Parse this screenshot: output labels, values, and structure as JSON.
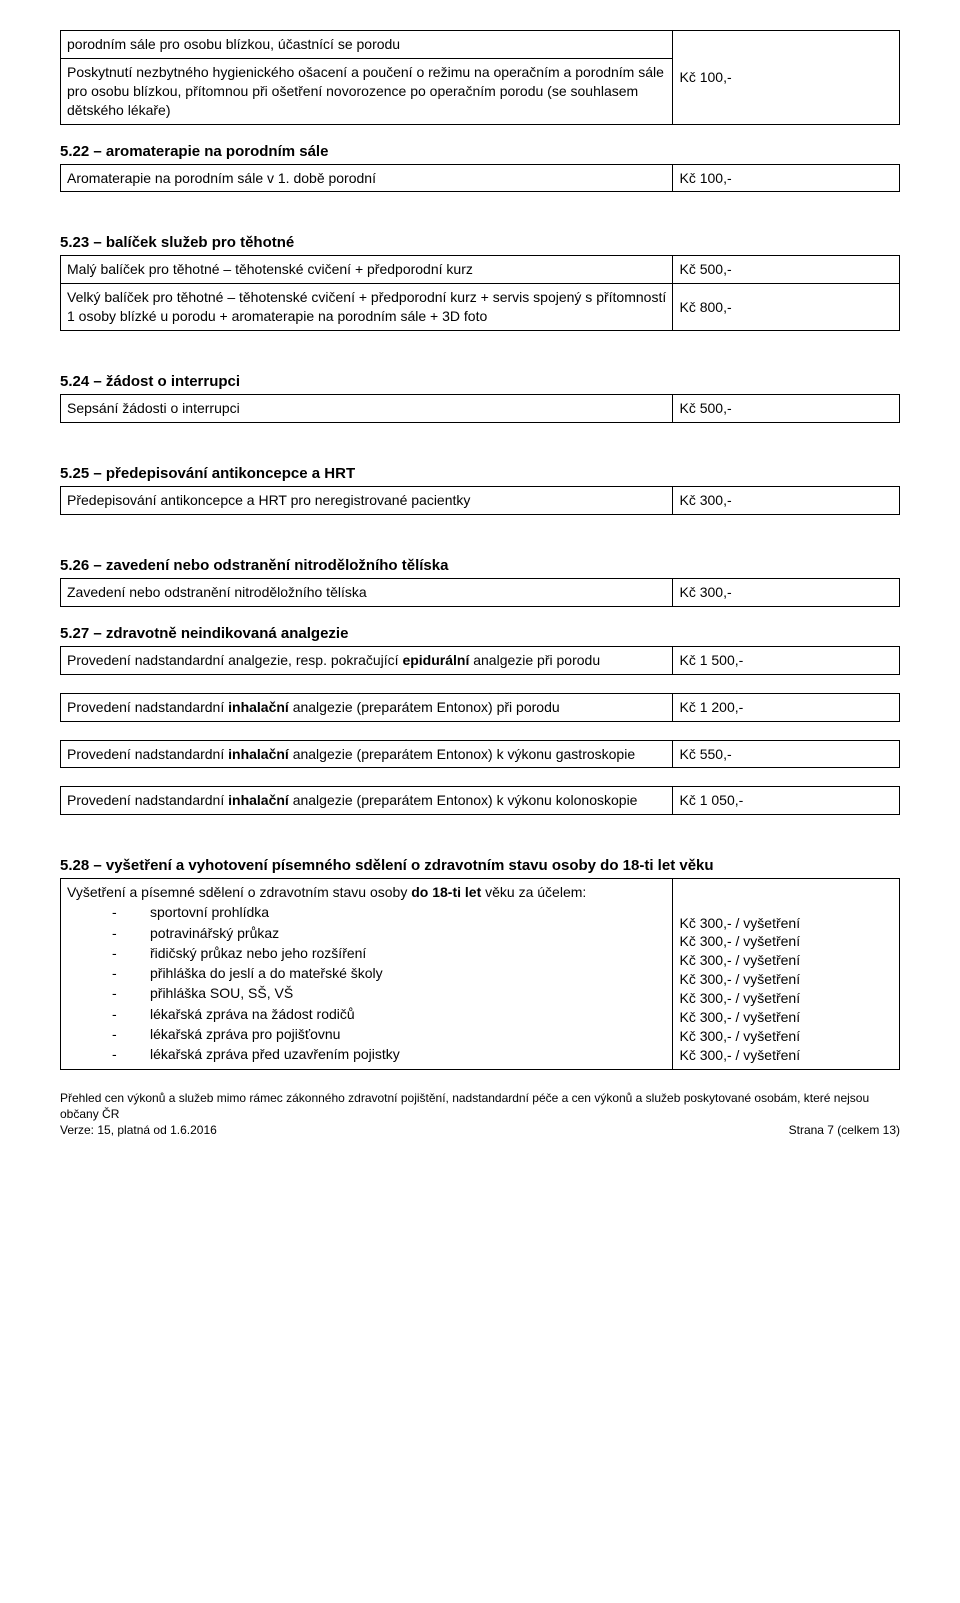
{
  "colors": {
    "text": "#000000",
    "background": "#ffffff",
    "border": "#000000"
  },
  "typography": {
    "body_font": "Verdana, Arial, sans-serif",
    "body_size_pt": 10.5,
    "heading_weight": "bold"
  },
  "layout": {
    "price_column_width_pct": 27
  },
  "tables": {
    "t_intro": {
      "rows": [
        {
          "desc": "porodním sále pro osobu blízkou, účastnící se porodu",
          "price": ""
        },
        {
          "desc": "Poskytnutí nezbytného hygienického ošacení a poučení o režimu na operačním a porodním sále pro osobu blízkou, přítomnou při ošetření novorozence po operačním porodu (se souhlasem dětského lékaře)",
          "price": "Kč 100,-"
        }
      ]
    },
    "s522": {
      "heading": "5.22 – aromaterapie na porodním sále",
      "rows": [
        {
          "desc": "Aromaterapie na porodním sále v 1. době porodní",
          "price": "Kč 100,-"
        }
      ]
    },
    "s523": {
      "heading": "5.23 – balíček služeb pro těhotné",
      "rows": [
        {
          "desc": "Malý balíček pro těhotné – těhotenské cvičení + předporodní kurz",
          "price": "Kč 500,-"
        },
        {
          "desc": "Velký balíček pro těhotné – těhotenské cvičení + předporodní kurz + servis spojený s přítomností 1 osoby blízké u porodu + aromaterapie na porodním sále + 3D foto",
          "price": "Kč 800,-"
        }
      ]
    },
    "s524": {
      "heading": "5.24 – žádost o interrupci",
      "rows": [
        {
          "desc": "Sepsání žádosti o interrupci",
          "price": "Kč 500,-"
        }
      ]
    },
    "s525": {
      "heading": "5.25 – předepisování antikoncepce a HRT",
      "rows": [
        {
          "desc": "Předepisování antikoncepce a HRT pro neregistrované pacientky",
          "price": "Kč 300,-"
        }
      ]
    },
    "s526": {
      "heading": "5.26 – zavedení nebo odstranění nitroděložního tělíska",
      "rows": [
        {
          "desc": "Zavedení nebo odstranění nitroděložního tělíska",
          "price": "Kč 300,-"
        }
      ]
    },
    "s527": {
      "heading": "5.27 – zdravotně neindikovaná analgezie",
      "r1": {
        "pre": "Provedení nadstandardní analgezie, resp. pokračující ",
        "bold": "epidurální",
        "post": " analgezie při porodu",
        "price": "Kč 1 500,-"
      },
      "r2": {
        "pre": "Provedení nadstandardní ",
        "bold": "inhalační",
        "post": " analgezie (preparátem Entonox) při porodu",
        "price": "Kč 1 200,-"
      },
      "r3": {
        "pre": "Provedení nadstandardní ",
        "bold": "inhalační",
        "post": " analgezie (preparátem Entonox) k výkonu gastroskopie",
        "price": "Kč 550,-"
      },
      "r4": {
        "pre": "Provedení nadstandardní ",
        "bold": "inhalační",
        "post": " analgezie (preparátem Entonox) k výkonu kolonoskopie",
        "price": "Kč 1 050,-"
      }
    },
    "s528": {
      "heading": "5.28 – vyšetření a vyhotovení písemného sdělení o zdravotním stavu osoby do 18-ti let věku",
      "intro_pre": "Vyšetření a písemné sdělení o zdravotním stavu osoby ",
      "intro_bold": "do 18-ti let",
      "intro_post": " věku za účelem:",
      "items": [
        "sportovní prohlídka",
        "potravinářský průkaz",
        "řidičský průkaz nebo jeho rozšíření",
        "přihláška do jeslí a do mateřské školy",
        "přihláška SOU, SŠ, VŠ",
        "lékařská zpráva na žádost rodičů",
        "lékařská zpráva pro pojišťovnu",
        "lékařská zpráva před uzavřením pojistky"
      ],
      "prices": [
        "Kč 300,- / vyšetření",
        "Kč 300,- / vyšetření",
        "Kč 300,- / vyšetření",
        "Kč 300,- / vyšetření",
        "Kč 300,- / vyšetření",
        "Kč 300,- / vyšetření",
        "Kč 300,- / vyšetření",
        "Kč 300,- / vyšetření"
      ]
    }
  },
  "footer": {
    "line1": "Přehled cen výkonů a služeb mimo rámec zákonného zdravotní pojištění, nadstandardní péče a cen výkonů a služeb poskytované osobám, které nejsou občany ČR",
    "version": "Verze: 15, platná od 1.6.2016",
    "page": "Strana 7 (celkem 13)"
  }
}
